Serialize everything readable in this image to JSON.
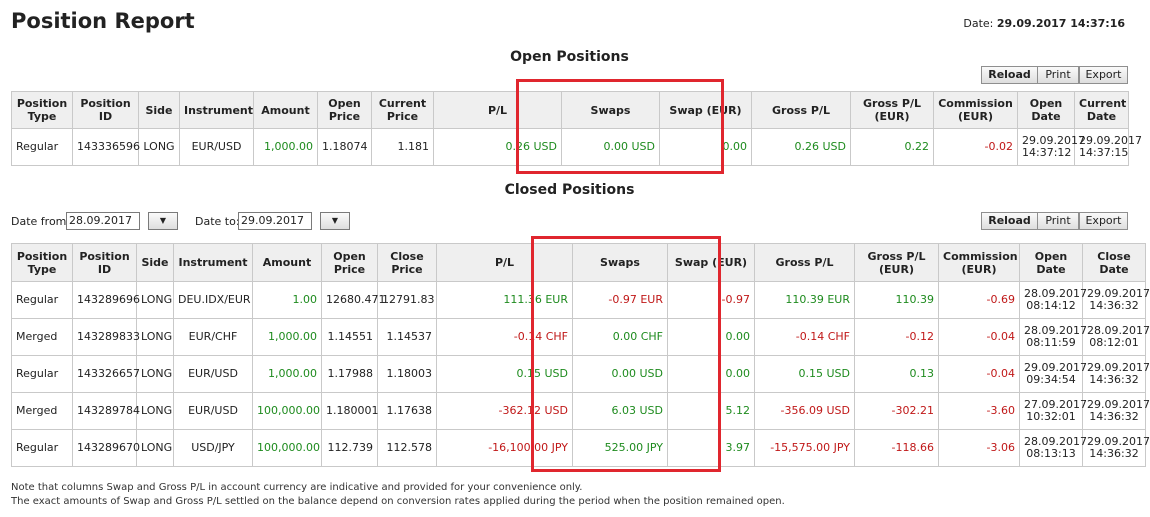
{
  "header": {
    "title": "Position Report",
    "date_label": "Date:",
    "date_value": "29.09.2017 14:37:16"
  },
  "open_positions": {
    "title": "Open Positions",
    "buttons": {
      "reload": "Reload",
      "print": "Print",
      "export": "Export"
    },
    "columns": [
      "Position Type",
      "Position ID",
      "Side",
      "Instrument",
      "Amount",
      "Open Price",
      "Current Price",
      "P/L",
      "Swaps",
      "Swap (EUR)",
      "Gross P/L",
      "Gross P/L (EUR)",
      "Commission (EUR)",
      "Open Date",
      "Current Date"
    ],
    "rows": [
      {
        "type": "Regular",
        "id": "143336596",
        "side": "LONG",
        "instrument": "EUR/USD",
        "amount": "1,000.00",
        "open_price": "1.18074",
        "current_price": "1.181",
        "pl": "0.26 USD",
        "swaps": "0.00 USD",
        "swap_eur": "0.00",
        "gross_pl": "0.26 USD",
        "gross_pl_eur": "0.22",
        "commission_eur": "-0.02",
        "open_date": "29.09.2017",
        "open_time": "14:37:12",
        "current_date": "29.09.2017",
        "current_time": "14:37:15"
      }
    ]
  },
  "closed_positions": {
    "title": "Closed Positions",
    "filter": {
      "date_from_label": "Date from:",
      "date_from_value": "28.09.2017",
      "date_to_label": "Date to:",
      "date_to_value": "29.09.2017"
    },
    "buttons": {
      "reload": "Reload",
      "print": "Print",
      "export": "Export"
    },
    "columns": [
      "Position Type",
      "Position ID",
      "Side",
      "Instrument",
      "Amount",
      "Open Price",
      "Close Price",
      "P/L",
      "Swaps",
      "Swap (EUR)",
      "Gross P/L",
      "Gross P/L (EUR)",
      "Commission (EUR)",
      "Open Date",
      "Close Date"
    ],
    "rows": [
      {
        "type": "Regular",
        "id": "143289696",
        "side": "LONG",
        "instrument": "DEU.IDX/EUR",
        "amount": "1.00",
        "open_price": "12680.471",
        "close_price": "12791.83",
        "pl": "111.36 EUR",
        "swaps": "-0.97 EUR",
        "swap_eur": "-0.97",
        "gross_pl": "110.39 EUR",
        "gross_pl_eur": "110.39",
        "commission_eur": "-0.69",
        "open_date": "28.09.2017",
        "open_time": "08:14:12",
        "close_date": "29.09.2017",
        "close_time": "14:36:32"
      },
      {
        "type": "Merged",
        "id": "143289833",
        "side": "LONG",
        "instrument": "EUR/CHF",
        "amount": "1,000.00",
        "open_price": "1.14551",
        "close_price": "1.14537",
        "pl": "-0.14 CHF",
        "swaps": "0.00 CHF",
        "swap_eur": "0.00",
        "gross_pl": "-0.14 CHF",
        "gross_pl_eur": "-0.12",
        "commission_eur": "-0.04",
        "open_date": "28.09.2017",
        "open_time": "08:11:59",
        "close_date": "28.09.2017",
        "close_time": "08:12:01"
      },
      {
        "type": "Regular",
        "id": "143326657",
        "side": "LONG",
        "instrument": "EUR/USD",
        "amount": "1,000.00",
        "open_price": "1.17988",
        "close_price": "1.18003",
        "pl": "0.15 USD",
        "swaps": "0.00 USD",
        "swap_eur": "0.00",
        "gross_pl": "0.15 USD",
        "gross_pl_eur": "0.13",
        "commission_eur": "-0.04",
        "open_date": "29.09.2017",
        "open_time": "09:34:54",
        "close_date": "29.09.2017",
        "close_time": "14:36:32"
      },
      {
        "type": "Merged",
        "id": "143289784",
        "side": "LONG",
        "instrument": "EUR/USD",
        "amount": "100,000.00",
        "open_price": "1.180001",
        "close_price": "1.17638",
        "pl": "-362.12 USD",
        "swaps": "6.03 USD",
        "swap_eur": "5.12",
        "gross_pl": "-356.09 USD",
        "gross_pl_eur": "-302.21",
        "commission_eur": "-3.60",
        "open_date": "27.09.2017",
        "open_time": "10:32:01",
        "close_date": "29.09.2017",
        "close_time": "14:36:32"
      },
      {
        "type": "Regular",
        "id": "143289670",
        "side": "LONG",
        "instrument": "USD/JPY",
        "amount": "100,000.00",
        "open_price": "112.739",
        "close_price": "112.578",
        "pl": "-16,100.00 JPY",
        "swaps": "525.00 JPY",
        "swap_eur": "3.97",
        "gross_pl": "-15,575.00 JPY",
        "gross_pl_eur": "-118.66",
        "commission_eur": "-3.06",
        "open_date": "28.09.2017",
        "open_time": "08:13:13",
        "close_date": "29.09.2017",
        "close_time": "14:36:32"
      }
    ]
  },
  "notes": {
    "line1": "Note that columns Swap and Gross P/L in account currency are indicative and provided for your convenience only.",
    "line2": "The exact amounts of Swap and Gross P/L settled on the balance depend on conversion rates applied during the period when the position remained open."
  },
  "colors": {
    "positive": "#1e8b1e",
    "negative": "#c01818",
    "highlight": "#e0262e",
    "header_bg": "#efefef"
  }
}
